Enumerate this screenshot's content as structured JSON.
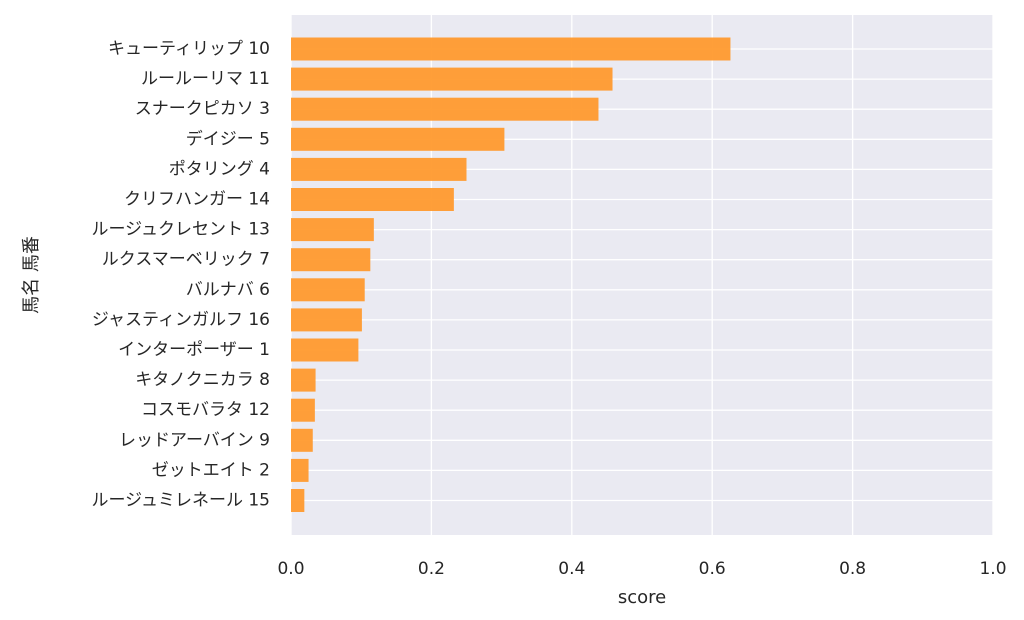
{
  "chart_data": {
    "type": "bar",
    "orientation": "horizontal",
    "xlabel": "score",
    "ylabel": "馬名 馬番",
    "xlim": [
      0.0,
      1.0
    ],
    "xticks": [
      "0.0",
      "0.2",
      "0.4",
      "0.6",
      "0.8",
      "1.0"
    ],
    "grid": true,
    "categories": [
      "キューティリップ 10",
      "ルールーリマ 11",
      "スナークピカソ 3",
      "デイジー 5",
      "ポタリング 4",
      "クリフハンガー 14",
      "ルージュクレセント 13",
      "ルクスマーベリック 7",
      "バルナバ 6",
      "ジャスティンガルフ 16",
      "インターポーザー 1",
      "キタノクニカラ 8",
      "コスモバラタ 12",
      "レッドアーバイン 9",
      "ゼットエイト 2",
      "ルージュミレネール 15"
    ],
    "values": [
      0.626,
      0.458,
      0.438,
      0.304,
      0.25,
      0.232,
      0.118,
      0.113,
      0.105,
      0.101,
      0.096,
      0.035,
      0.034,
      0.031,
      0.025,
      0.019
    ],
    "colors": {
      "bar": "#ff9a2e",
      "plot_background": "#eaeaf2",
      "grid": "#ffffff",
      "text": "#262626"
    }
  }
}
